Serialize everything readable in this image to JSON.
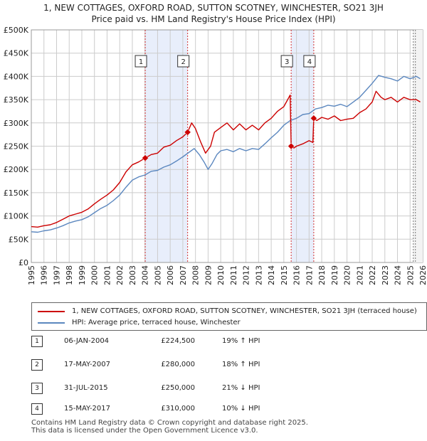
{
  "header": {
    "title_line1": "1, NEW COTTAGES, OXFORD ROAD, SUTTON SCOTNEY, WINCHESTER, SO21 3JH",
    "title_line2": "Price paid vs. HM Land Registry's House Price Index (HPI)"
  },
  "colors": {
    "property": "#cc0000",
    "hpi": "#5b87bf",
    "shade": "#e8eefb",
    "grid": "#cccccc"
  },
  "legend": {
    "property_label": "1, NEW COTTAGES, OXFORD ROAD, SUTTON SCOTNEY, WINCHESTER, SO21 3JH (terraced house)",
    "hpi_label": "HPI: Average price, terraced house, Winchester"
  },
  "chart_data": {
    "type": "line",
    "title": "Price paid vs. HM Land Registry's House Price Index (HPI)",
    "xlabel": "",
    "ylabel": "",
    "xlim": [
      1995,
      2026
    ],
    "ylim": [
      0,
      500000
    ],
    "grid": true,
    "y_ticks": [
      {
        "value": 0,
        "label": "£0"
      },
      {
        "value": 50000,
        "label": "£50K"
      },
      {
        "value": 100000,
        "label": "£100K"
      },
      {
        "value": 150000,
        "label": "£150K"
      },
      {
        "value": 200000,
        "label": "£200K"
      },
      {
        "value": 250000,
        "label": "£250K"
      },
      {
        "value": 300000,
        "label": "£300K"
      },
      {
        "value": 350000,
        "label": "£350K"
      },
      {
        "value": 400000,
        "label": "£400K"
      },
      {
        "value": 450000,
        "label": "£450K"
      },
      {
        "value": 500000,
        "label": "£500K"
      }
    ],
    "x_ticks": [
      "1995",
      "1996",
      "1997",
      "1998",
      "1999",
      "2000",
      "2001",
      "2002",
      "2003",
      "2004",
      "2005",
      "2006",
      "2007",
      "2008",
      "2009",
      "2010",
      "2011",
      "2012",
      "2013",
      "2014",
      "2015",
      "2016",
      "2017",
      "2018",
      "2019",
      "2020",
      "2021",
      "2022",
      "2023",
      "2024",
      "2025",
      "2026"
    ],
    "shaded_ranges": [
      [
        2004.02,
        2007.38
      ],
      [
        2015.58,
        2017.37
      ]
    ],
    "future_from": 2025.25,
    "series": [
      {
        "name": "1, NEW COTTAGES, OXFORD ROAD, SUTTON SCOTNEY, WINCHESTER, SO21 3JH (terraced house)",
        "color": "#cc0000",
        "x": [
          1995.0,
          1995.5,
          1996.0,
          1996.5,
          1997.0,
          1997.5,
          1998.0,
          1998.5,
          1999.0,
          1999.5,
          2000.0,
          2000.5,
          2001.0,
          2001.5,
          2002.0,
          2002.5,
          2003.0,
          2003.5,
          2004.02,
          2004.5,
          2005.0,
          2005.5,
          2006.0,
          2006.5,
          2007.0,
          2007.38,
          2007.7,
          2008.0,
          2008.4,
          2008.8,
          2009.2,
          2009.5,
          2010.0,
          2010.5,
          2011.0,
          2011.5,
          2012.0,
          2012.5,
          2013.0,
          2013.5,
          2014.0,
          2014.5,
          2015.0,
          2015.3,
          2015.5,
          2015.58,
          2015.8,
          2016.0,
          2016.5,
          2017.0,
          2017.3,
          2017.37,
          2017.6,
          2018.0,
          2018.5,
          2019.0,
          2019.5,
          2020.0,
          2020.5,
          2021.0,
          2021.5,
          2022.0,
          2022.3,
          2022.7,
          2023.0,
          2023.5,
          2024.0,
          2024.5,
          2025.0,
          2025.5,
          2025.8
        ],
        "y": [
          77000,
          76000,
          79000,
          81000,
          86000,
          93000,
          100000,
          104000,
          108000,
          115000,
          126000,
          136000,
          145000,
          156000,
          172000,
          195000,
          210000,
          216000,
          224500,
          232000,
          235000,
          248000,
          252000,
          262000,
          270000,
          280000,
          300000,
          288000,
          260000,
          235000,
          250000,
          280000,
          290000,
          300000,
          285000,
          298000,
          285000,
          295000,
          285000,
          300000,
          310000,
          325000,
          335000,
          350000,
          360000,
          250000,
          246000,
          250000,
          255000,
          262000,
          258000,
          310000,
          305000,
          312000,
          308000,
          315000,
          305000,
          308000,
          310000,
          322000,
          330000,
          345000,
          368000,
          355000,
          350000,
          355000,
          345000,
          355000,
          350000,
          350000,
          345000
        ]
      },
      {
        "name": "HPI: Average price, terraced house, Winchester",
        "color": "#5b87bf",
        "x": [
          1995.0,
          1995.5,
          1996.0,
          1996.5,
          1997.0,
          1997.5,
          1998.0,
          1998.5,
          1999.0,
          1999.5,
          2000.0,
          2000.5,
          2001.0,
          2001.5,
          2002.0,
          2002.5,
          2003.0,
          2003.5,
          2004.0,
          2004.5,
          2005.0,
          2005.5,
          2006.0,
          2006.5,
          2007.0,
          2007.5,
          2007.9,
          2008.3,
          2008.7,
          2009.0,
          2009.3,
          2009.7,
          2010.0,
          2010.5,
          2011.0,
          2011.5,
          2012.0,
          2012.5,
          2013.0,
          2013.5,
          2014.0,
          2014.5,
          2015.0,
          2015.5,
          2016.0,
          2016.5,
          2017.0,
          2017.5,
          2018.0,
          2018.5,
          2019.0,
          2019.5,
          2020.0,
          2020.5,
          2021.0,
          2021.5,
          2022.0,
          2022.5,
          2023.0,
          2023.5,
          2024.0,
          2024.5,
          2025.0,
          2025.5,
          2025.8
        ],
        "y": [
          66000,
          65000,
          68000,
          70000,
          74000,
          79000,
          85000,
          89000,
          92000,
          98000,
          107000,
          116000,
          123000,
          133000,
          145000,
          162000,
          177000,
          184000,
          188000,
          196000,
          198000,
          205000,
          210000,
          218000,
          227000,
          237000,
          245000,
          232000,
          215000,
          200000,
          212000,
          232000,
          240000,
          243000,
          238000,
          245000,
          240000,
          245000,
          243000,
          255000,
          268000,
          280000,
          295000,
          305000,
          310000,
          318000,
          320000,
          330000,
          333000,
          338000,
          336000,
          340000,
          335000,
          345000,
          355000,
          370000,
          385000,
          402000,
          398000,
          395000,
          390000,
          400000,
          395000,
          400000,
          395000
        ]
      }
    ],
    "sales": [
      {
        "num": "1",
        "x": 2004.02,
        "y": 224500
      },
      {
        "num": "2",
        "x": 2007.38,
        "y": 280000
      },
      {
        "num": "3",
        "x": 2015.58,
        "y": 250000
      },
      {
        "num": "4",
        "x": 2017.37,
        "y": 310000
      }
    ]
  },
  "sales_table": [
    {
      "num": "1",
      "date": "06-JAN-2004",
      "price": "£224,500",
      "hpi": "19% ↑ HPI"
    },
    {
      "num": "2",
      "date": "17-MAY-2007",
      "price": "£280,000",
      "hpi": "18% ↑ HPI"
    },
    {
      "num": "3",
      "date": "31-JUL-2015",
      "price": "£250,000",
      "hpi": "21% ↓ HPI"
    },
    {
      "num": "4",
      "date": "15-MAY-2017",
      "price": "£310,000",
      "hpi": "10% ↓ HPI"
    }
  ],
  "footer": {
    "line1": "Contains HM Land Registry data © Crown copyright and database right 2025.",
    "line2": "This data is licensed under the Open Government Licence v3.0."
  }
}
